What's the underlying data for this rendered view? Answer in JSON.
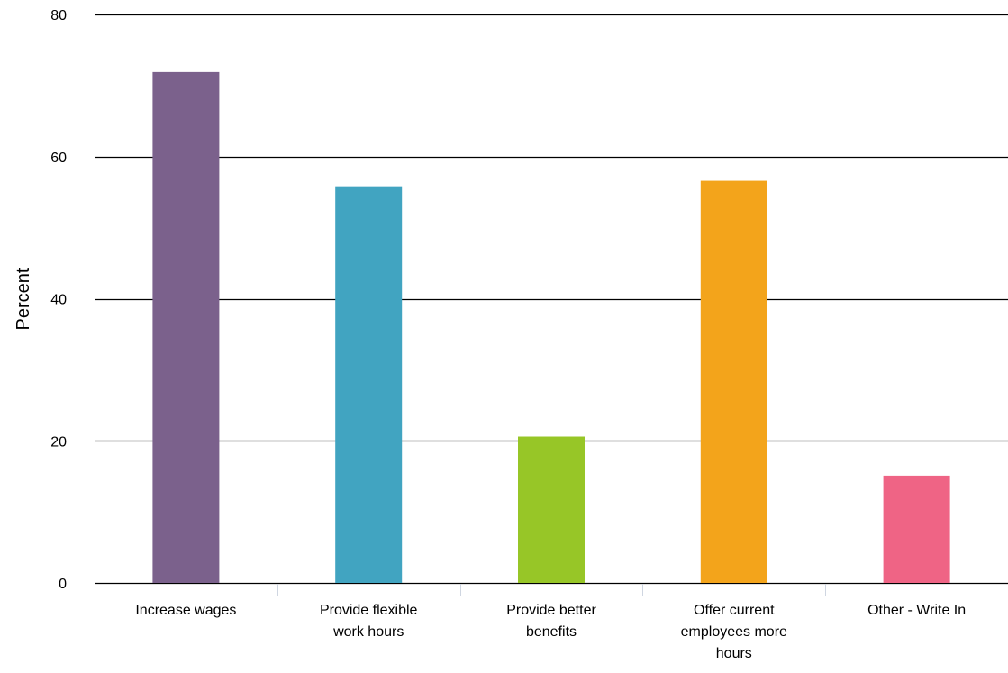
{
  "chart_data": {
    "type": "bar",
    "title": "",
    "xlabel": "",
    "ylabel": "Percent",
    "ylim": [
      0,
      80
    ],
    "yticks": [
      0,
      20,
      40,
      60,
      80
    ],
    "grid": true,
    "legend": "none",
    "categories": [
      "Increase wages",
      "Provide flexible work hours",
      "Provide better benefits",
      "Offer current employees more hours",
      "Other - Write In"
    ],
    "category_lines": [
      [
        "Increase wages"
      ],
      [
        "Provide flexible",
        "work hours"
      ],
      [
        "Provide better",
        "benefits"
      ],
      [
        "Offer current",
        "employees more",
        "hours"
      ],
      [
        "Other - Write In"
      ]
    ],
    "values": [
      71.9,
      55.7,
      20.6,
      56.6,
      15.1
    ],
    "colors": [
      "#7b618c",
      "#41a4c1",
      "#97c627",
      "#f3a41b",
      "#ef6485"
    ]
  }
}
